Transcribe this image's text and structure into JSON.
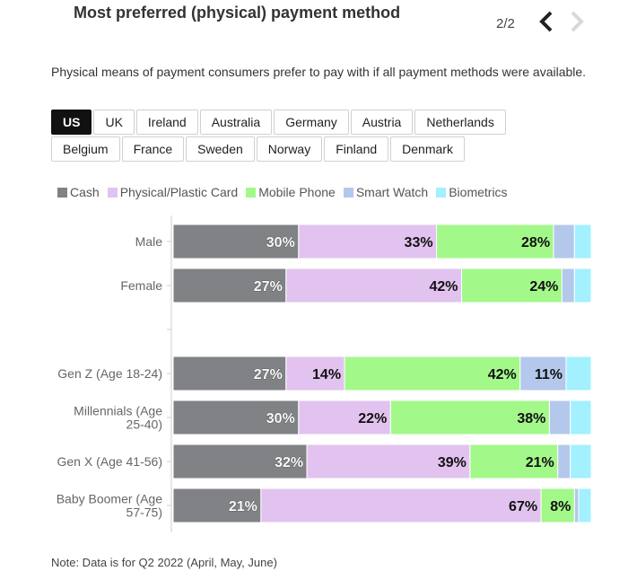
{
  "header": {
    "title": "Most preferred (physical) payment method",
    "pager": "2/2",
    "prev_icon": "chevron-left-icon",
    "next_icon": "chevron-right-icon"
  },
  "subtitle": "Physical means of payment consumers prefer to pay with if all payment methods were available.",
  "tabs": {
    "active": "US",
    "rows": [
      [
        "US",
        "UK",
        "Ireland",
        "Australia",
        "Germany",
        "Austria",
        "Netherlands"
      ],
      [
        "Belgium",
        "France",
        "Sweden",
        "Norway",
        "Finland",
        "Denmark"
      ]
    ]
  },
  "note": "Note: Data is for Q2 2022 (April, May, June)",
  "chart_data": {
    "type": "bar",
    "orientation": "horizontal",
    "stacked": true,
    "normalized_to": 100,
    "legend_position": "top-left",
    "categories": [
      "Male",
      "Female",
      "",
      "Gen Z (Age 18-24)",
      "Millennials (Age 25-40)",
      "Gen X (Age 41-56)",
      "Baby Boomer (Age 57-75)"
    ],
    "category_lines": [
      [
        "Male"
      ],
      [
        "Female"
      ],
      [],
      [
        "Gen Z (Age 18-24)"
      ],
      [
        "Millennials (Age",
        "25-40)"
      ],
      [
        "Gen X (Age 41-56)"
      ],
      [
        "Baby Boomer (Age",
        "57-75)"
      ]
    ],
    "series": [
      {
        "name": "Cash",
        "color": "#808285",
        "values": [
          30,
          27,
          null,
          27,
          30,
          32,
          21
        ]
      },
      {
        "name": "Physical/Plastic Card",
        "color": "#e2c3ef",
        "values": [
          33,
          42,
          null,
          14,
          22,
          39,
          67
        ]
      },
      {
        "name": "Mobile Phone",
        "color": "#a3f88a",
        "values": [
          28,
          24,
          null,
          42,
          38,
          21,
          8
        ]
      },
      {
        "name": "Smart Watch",
        "color": "#b4c8ec",
        "values": [
          5,
          3,
          null,
          11,
          5,
          3,
          1
        ]
      },
      {
        "name": "Biometrics",
        "color": "#a3f0ff",
        "values": [
          4,
          4,
          null,
          6,
          5,
          5,
          3
        ]
      }
    ],
    "data_labels": [
      [
        "30%",
        "33%",
        "28%",
        "",
        ""
      ],
      [
        "27%",
        "42%",
        "24%",
        "",
        ""
      ],
      null,
      [
        "27%",
        "14%",
        "42%",
        "11%",
        ""
      ],
      [
        "30%",
        "22%",
        "38%",
        "",
        ""
      ],
      [
        "32%",
        "39%",
        "21%",
        "",
        ""
      ],
      [
        "21%",
        "67%",
        "8%",
        "",
        ""
      ]
    ]
  }
}
